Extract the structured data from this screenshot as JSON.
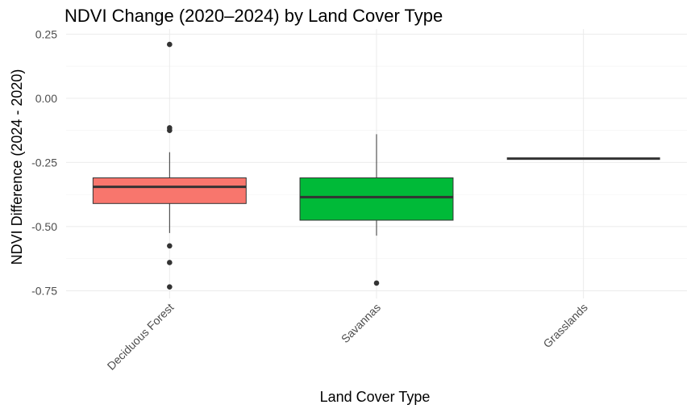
{
  "chart_data": {
    "type": "boxplot",
    "title": "NDVI Change (2020–2024) by Land Cover Type",
    "xlabel": "Land Cover Type",
    "ylabel": "NDVI Difference (2024 - 2020)",
    "ylim": [
      -0.78,
      0.27
    ],
    "yticks": [
      0.25,
      0.0,
      -0.25,
      -0.5,
      -0.75
    ],
    "ytick_labels": [
      "0.25",
      "0.00",
      "-0.25",
      "-0.50",
      "-0.75"
    ],
    "grid": true,
    "legend": "none",
    "categories": [
      "Deciduous Forest",
      "Savannas",
      "Grasslands"
    ],
    "boxes": [
      {
        "category": "Deciduous Forest",
        "color": "#F8766D",
        "q1": -0.41,
        "median": -0.345,
        "q3": -0.31,
        "whisker_low": -0.525,
        "whisker_high": -0.21,
        "outliers": [
          0.21,
          -0.115,
          -0.125,
          -0.575,
          -0.64,
          -0.735
        ]
      },
      {
        "category": "Savannas",
        "color": "#00BA38",
        "q1": -0.475,
        "median": -0.385,
        "q3": -0.31,
        "whisker_low": -0.535,
        "whisker_high": -0.14,
        "outliers": [
          -0.72
        ]
      },
      {
        "category": "Grasslands",
        "color": "#619CFF",
        "q1": -0.235,
        "median": -0.235,
        "q3": -0.235,
        "whisker_low": -0.235,
        "whisker_high": -0.235,
        "outliers": []
      }
    ]
  }
}
